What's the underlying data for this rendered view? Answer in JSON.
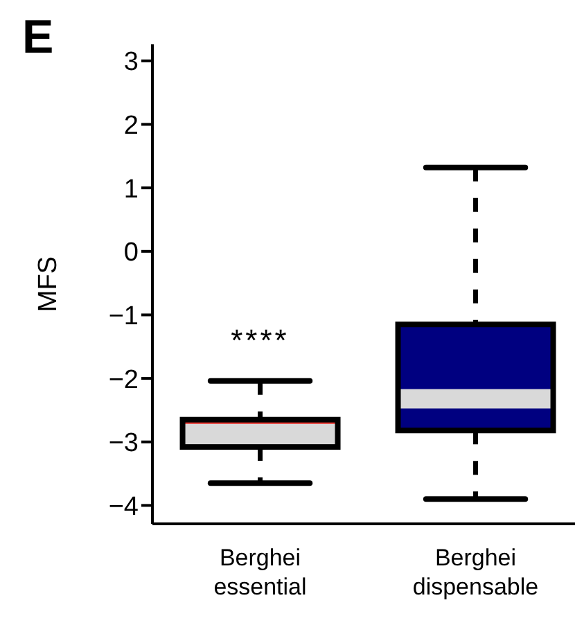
{
  "chart_data": {
    "type": "box",
    "title": "E",
    "ylabel": "MFS",
    "categories": [
      "Berghei\nessential",
      "Berghei\ndispensable"
    ],
    "colors": [
      "#d9d9d9",
      "#000080"
    ],
    "boxes": [
      {
        "low": -3.65,
        "q1": -3.08,
        "median": -2.7,
        "q3": -2.65,
        "high": -2.04
      },
      {
        "low": -3.9,
        "q1": -2.82,
        "median": -2.32,
        "q3": -1.15,
        "high": 1.32
      }
    ],
    "ylim": [
      -4.29,
      3.26
    ],
    "yticks": [
      -4,
      -3,
      -2,
      -1,
      0,
      1,
      2,
      3
    ],
    "annotations": [
      "****"
    ],
    "grid": false,
    "legend": false
  }
}
